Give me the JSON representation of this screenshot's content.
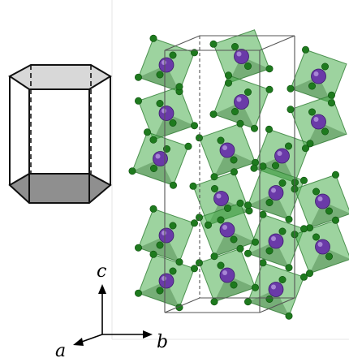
{
  "axes": {
    "a_label": "a",
    "b_label": "b",
    "c_label": "c"
  },
  "colors": {
    "octahedron": "#4caf50",
    "anion": "#1e7a1e",
    "cation": "#6a3aa8",
    "unit_cell": "#555555",
    "prism_top": "#d8d8d8",
    "prism_bottom": "#8f8f8f"
  },
  "structure": {
    "polyhedron_type": "octahedron",
    "cation_positions_bc": [
      [
        0.18,
        0.1
      ],
      [
        0.55,
        0.07
      ],
      [
        0.93,
        0.14
      ],
      [
        0.18,
        0.27
      ],
      [
        0.55,
        0.23
      ],
      [
        0.93,
        0.3
      ],
      [
        0.15,
        0.43
      ],
      [
        0.48,
        0.4
      ],
      [
        0.75,
        0.42
      ],
      [
        0.45,
        0.57
      ],
      [
        0.72,
        0.55
      ],
      [
        0.95,
        0.58
      ],
      [
        0.18,
        0.7
      ],
      [
        0.48,
        0.68
      ],
      [
        0.72,
        0.72
      ],
      [
        0.95,
        0.74
      ],
      [
        0.18,
        0.86
      ],
      [
        0.48,
        0.84
      ],
      [
        0.72,
        0.89
      ]
    ]
  }
}
